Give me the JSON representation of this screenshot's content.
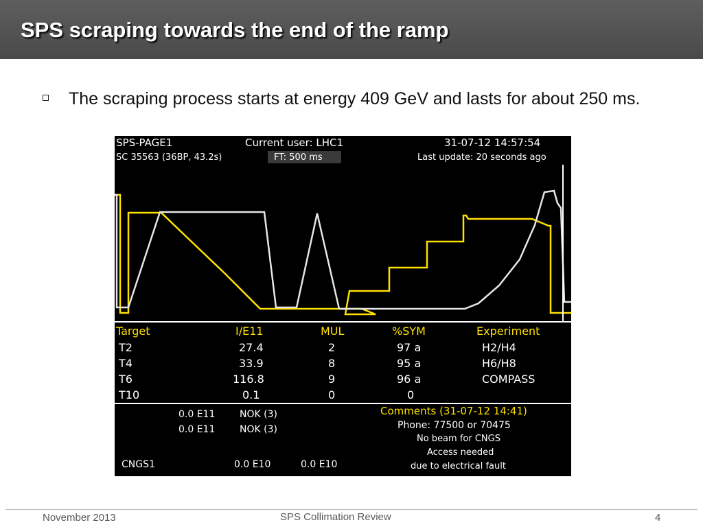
{
  "slide": {
    "title": "SPS scraping towards the end of the ramp",
    "bullet": "The scraping process starts at energy 409 GeV and lasts for about 250 ms."
  },
  "screen": {
    "page_name": "SPS-PAGE1",
    "current_user": "Current user:  LHC1",
    "datetime": "31-07-12  14:57:54",
    "cycle_info": "SC 35563 (36BP, 43.2s)",
    "ft": "FT:   500 ms",
    "last_update": "Last update: 20 seconds ago",
    "table": {
      "headers": [
        "Target",
        "I/E11",
        "MUL",
        "%SYM",
        "Experiment"
      ],
      "rows": [
        [
          "T2",
          "27.4",
          "2",
          "97 a",
          "H2/H4"
        ],
        [
          "T4",
          "33.9",
          "8",
          "95 a",
          "H6/H8"
        ],
        [
          "T6",
          "116.8",
          "9",
          "96 a",
          "COMPASS"
        ],
        [
          "T10",
          "0.1",
          "0",
          "0",
          ""
        ]
      ]
    },
    "status_rows": [
      {
        "value": "0.0 E11",
        "status": "NOK (3)"
      },
      {
        "value": "0.0 E11",
        "status": "NOK (3)"
      }
    ],
    "cngs": {
      "label": "CNGS1",
      "v1": "0.0 E10",
      "v2": "0.0 E10"
    },
    "comments": {
      "header": "Comments (31-07-12 14:41)",
      "lines": [
        "Phone: 77500 or 70475",
        "No beam for CNGS",
        "Access needed",
        "due to electrical fault"
      ]
    },
    "colors": {
      "background": "#000000",
      "trace_yellow": "#ffe100",
      "trace_white": "#e6e6e6",
      "text": "#ffffff"
    }
  },
  "footer": {
    "date": "November 2013",
    "center": "SPS Collimation Review",
    "page": "4"
  }
}
